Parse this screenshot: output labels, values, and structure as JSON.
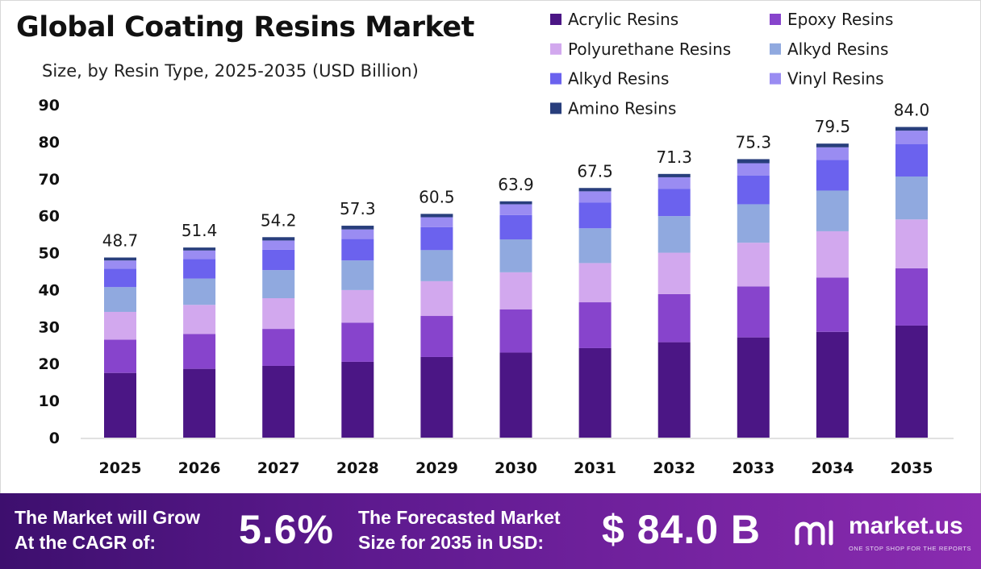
{
  "title": "Global Coating Resins Market",
  "subtitle": "Size, by Resin Type, 2025-2035 (USD Billion)",
  "colors": {
    "acrylic": "#4b1685",
    "epoxy": "#8744cc",
    "polyurethane": "#d2a8ee",
    "alkyd_a": "#90a9df",
    "alkyd_b": "#6b62ee",
    "vinyl": "#9a8cf2",
    "amino": "#283e7c",
    "banner_start": "#3d0f6e",
    "banner_end": "#8a2bb0"
  },
  "chart_data": {
    "type": "bar",
    "stacked": true,
    "categories": [
      "2025",
      "2026",
      "2027",
      "2028",
      "2029",
      "2030",
      "2031",
      "2032",
      "2033",
      "2034",
      "2035"
    ],
    "series": [
      {
        "name": "Acrylic Resins",
        "color": "#4b1685",
        "values": [
          17.5,
          18.6,
          19.4,
          20.5,
          21.8,
          23.0,
          24.2,
          25.8,
          27.1,
          28.6,
          30.3
        ]
      },
      {
        "name": "Epoxy Resins",
        "color": "#8744cc",
        "values": [
          9.0,
          9.4,
          10.0,
          10.6,
          11.1,
          11.7,
          12.4,
          13.0,
          13.8,
          14.7,
          15.5
        ]
      },
      {
        "name": "Polyurethane Resins",
        "color": "#d2a8ee",
        "values": [
          7.5,
          7.9,
          8.3,
          8.8,
          9.4,
          10.0,
          10.6,
          11.2,
          11.8,
          12.5,
          13.2
        ]
      },
      {
        "name": "Alkyd Resins",
        "color": "#90a9df",
        "values": [
          6.7,
          7.1,
          7.6,
          8.0,
          8.4,
          8.9,
          9.4,
          9.9,
          10.4,
          11.0,
          11.6
        ]
      },
      {
        "name": "Alkyd Resins",
        "color": "#6b62ee",
        "values": [
          5.0,
          5.3,
          5.5,
          5.8,
          6.2,
          6.6,
          7.0,
          7.4,
          7.8,
          8.3,
          8.8
        ]
      },
      {
        "name": "Vinyl Resins",
        "color": "#9a8cf2",
        "values": [
          2.2,
          2.3,
          2.5,
          2.6,
          2.7,
          2.9,
          3.0,
          3.1,
          3.3,
          3.4,
          3.6
        ]
      },
      {
        "name": "Amino Resins",
        "color": "#283e7c",
        "values": [
          0.8,
          0.8,
          0.9,
          1.0,
          0.9,
          0.8,
          0.9,
          0.9,
          1.1,
          1.0,
          1.0
        ]
      }
    ],
    "totals": [
      48.7,
      51.4,
      54.2,
      57.3,
      60.5,
      63.9,
      67.5,
      71.3,
      75.3,
      79.5,
      84.0
    ],
    "total_labels": [
      "48.7",
      "51.4",
      "54.2",
      "57.3",
      "60.5",
      "63.9",
      "67.5",
      "71.3",
      "75.3",
      "79.5",
      "84.0"
    ],
    "ylim": [
      0,
      90
    ],
    "yticks": [
      0,
      10,
      20,
      30,
      40,
      50,
      60,
      70,
      80,
      90
    ],
    "grid": false,
    "legend": "top-right"
  },
  "banner": {
    "cagr_line1": "The Market will Grow",
    "cagr_line2": "At the CAGR of:",
    "cagr_value": "5.6%",
    "forecast_line1": "The Forecasted Market",
    "forecast_line2": "Size for 2035 in USD:",
    "forecast_value": "$ 84.0 B",
    "logo_name": "market.us",
    "logo_tagline": "ONE STOP SHOP FOR THE REPORTS"
  }
}
